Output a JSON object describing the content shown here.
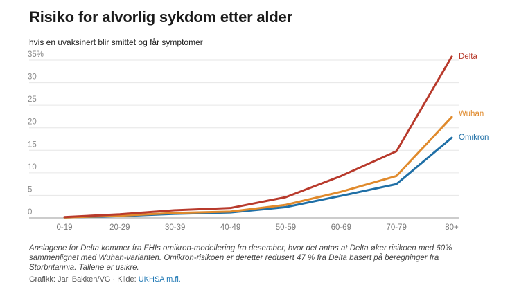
{
  "title": "Risiko for alvorlig sykdom etter alder",
  "subtitle": "hvis en uvaksinert blir smittet og får symptomer",
  "footer": {
    "note": "Anslagene for Delta kommer fra FHIs omikron-modellering fra desember, hvor det antas at Delta øker risikoen med 60% sammenlignet med Wuhan-varianten. Omikron-risikoen er deretter redusert 47 % fra Delta basert på beregninger fra Storbritannia. Tallene er usikre.",
    "credit_prefix": "Grafikk: Jari Bakken/VG · Kilde: ",
    "source_link": "UKHSA m.fl."
  },
  "chart_data": {
    "type": "line",
    "title": "Risiko for alvorlig sykdom etter alder",
    "subtitle": "hvis en uvaksinert blir smittet og får symptomer",
    "xlabel": "",
    "ylabel": "",
    "categories": [
      "0-19",
      "20-29",
      "30-39",
      "40-49",
      "50-59",
      "60-69",
      "70-79",
      "80+"
    ],
    "ylim": [
      0,
      35
    ],
    "yticks": [
      0,
      5,
      10,
      15,
      20,
      25,
      30,
      35
    ],
    "ytick_labels": [
      "0",
      "5",
      "10",
      "15",
      "20",
      "25",
      "30",
      "35%"
    ],
    "grid": true,
    "legend": "direct labels at line ends (right)",
    "series": [
      {
        "name": "Delta",
        "color": "#b83a2c",
        "values": [
          0.2,
          0.8,
          1.7,
          2.2,
          4.6,
          9.3,
          14.8,
          35.8
        ]
      },
      {
        "name": "Wuhan",
        "color": "#e08a2c",
        "values": [
          0.1,
          0.5,
          1.1,
          1.4,
          2.9,
          5.8,
          9.3,
          22.4
        ]
      },
      {
        "name": "Omikron",
        "color": "#1f6fa6",
        "values": [
          0.1,
          0.4,
          0.9,
          1.2,
          2.4,
          4.9,
          7.5,
          17.8
        ]
      }
    ]
  }
}
